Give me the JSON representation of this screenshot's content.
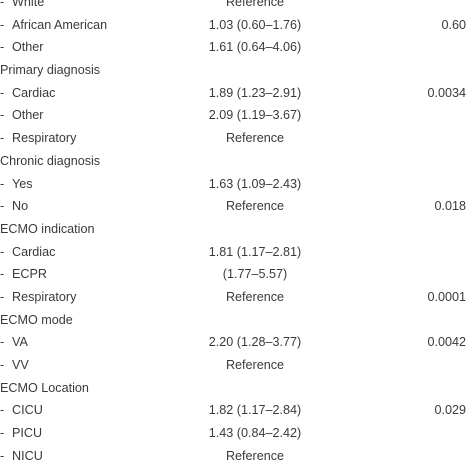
{
  "rows": [
    {
      "type": "sub",
      "label": "White",
      "ci": "Reference",
      "p": ""
    },
    {
      "type": "sub",
      "label": "African American",
      "ci": "1.03 (0.60–1.76)",
      "p": "0.60"
    },
    {
      "type": "sub",
      "label": "Other",
      "ci": "1.61 (0.64–4.06)",
      "p": ""
    },
    {
      "type": "header",
      "label": "Primary diagnosis",
      "ci": "",
      "p": ""
    },
    {
      "type": "sub",
      "label": "Cardiac",
      "ci": "1.89 (1.23–2.91)",
      "p": "0.0034"
    },
    {
      "type": "sub",
      "label": "Other",
      "ci": "2.09 (1.19–3.67)",
      "p": ""
    },
    {
      "type": "sub",
      "label": "Respiratory",
      "ci": "Reference",
      "p": ""
    },
    {
      "type": "header",
      "label": "Chronic diagnosis",
      "ci": "",
      "p": ""
    },
    {
      "type": "sub",
      "label": "Yes",
      "ci": "1.63 (1.09–2.43)",
      "p": ""
    },
    {
      "type": "sub",
      "label": "No",
      "ci": "Reference",
      "p": "0.018"
    },
    {
      "type": "header",
      "label": "ECMO indication",
      "ci": "",
      "p": ""
    },
    {
      "type": "sub",
      "label": "Cardiac",
      "ci": "1.81 (1.17–2.81)",
      "p": ""
    },
    {
      "type": "sub",
      "label": "ECPR",
      "ci": "(1.77–5.57)",
      "p": ""
    },
    {
      "type": "sub",
      "label": "Respiratory",
      "ci": "Reference",
      "p": "0.0001"
    },
    {
      "type": "header",
      "label": "ECMO mode",
      "ci": "",
      "p": ""
    },
    {
      "type": "sub",
      "label": "VA",
      "ci": "2.20 (1.28–3.77)",
      "p": "0.0042"
    },
    {
      "type": "sub",
      "label": "VV",
      "ci": "Reference",
      "p": ""
    },
    {
      "type": "header",
      "label": "ECMO Location",
      "ci": "",
      "p": ""
    },
    {
      "type": "sub",
      "label": "CICU",
      "ci": "1.82 (1.17–2.84)",
      "p": "0.029"
    },
    {
      "type": "sub",
      "label": "PICU",
      "ci": "1.43 (0.84–2.42)",
      "p": ""
    },
    {
      "type": "sub",
      "label": "NICU",
      "ci": "Reference",
      "p": ""
    }
  ],
  "dash": "-"
}
